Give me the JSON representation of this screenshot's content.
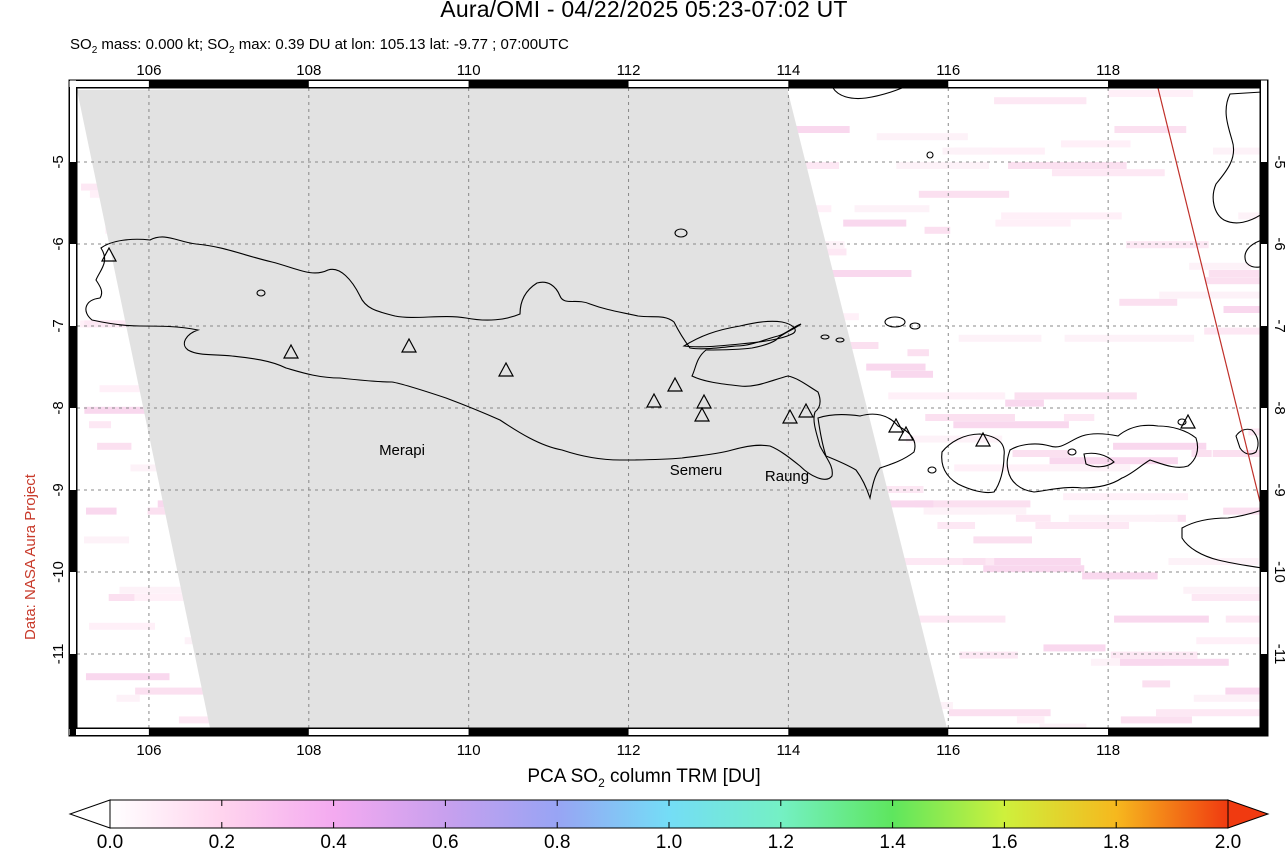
{
  "header": {
    "title": "Aura/OMI - 04/22/2025 05:23-07:02 UT",
    "subtitle_a": "SO",
    "subtitle_sub1": "2",
    "subtitle_b": " mass: 0.000 kt; SO",
    "subtitle_sub2": "2",
    "subtitle_c": " max: 0.39 DU at lon: 105.13 lat: -9.77 ; 07:00UTC"
  },
  "credit": "Data: NASA Aura Project",
  "map": {
    "lon_range": [
      105,
      120
    ],
    "lat_range": [
      -12,
      -4
    ],
    "x_ticks": [
      "106",
      "108",
      "110",
      "112",
      "114",
      "116",
      "118"
    ],
    "y_ticks": [
      "-5",
      "-6",
      "-7",
      "-8",
      "-9",
      "-10",
      "-11"
    ],
    "volcano_labels": [
      {
        "name": "Merapi"
      },
      {
        "name": "Semeru"
      },
      {
        "name": "Raung"
      }
    ],
    "colors": {
      "no_data": "#e2e2e2",
      "coast": "#000000",
      "grid": "#888888",
      "track_line": "#c0302a"
    }
  },
  "colorbar": {
    "title_a": "PCA SO",
    "title_sub": "2",
    "title_b": " column TRM [DU]",
    "ticks": [
      "0.0",
      "0.2",
      "0.4",
      "0.6",
      "0.8",
      "1.0",
      "1.2",
      "1.4",
      "1.6",
      "1.8",
      "2.0"
    ],
    "range": [
      0,
      2
    ],
    "colors": [
      "#ffffff",
      "#ffd0f0",
      "#f0a8f0",
      "#c0a0f0",
      "#90a0f8",
      "#70d8f8",
      "#70f0c0",
      "#60e860",
      "#c8f040",
      "#f8c020",
      "#f04010"
    ]
  }
}
